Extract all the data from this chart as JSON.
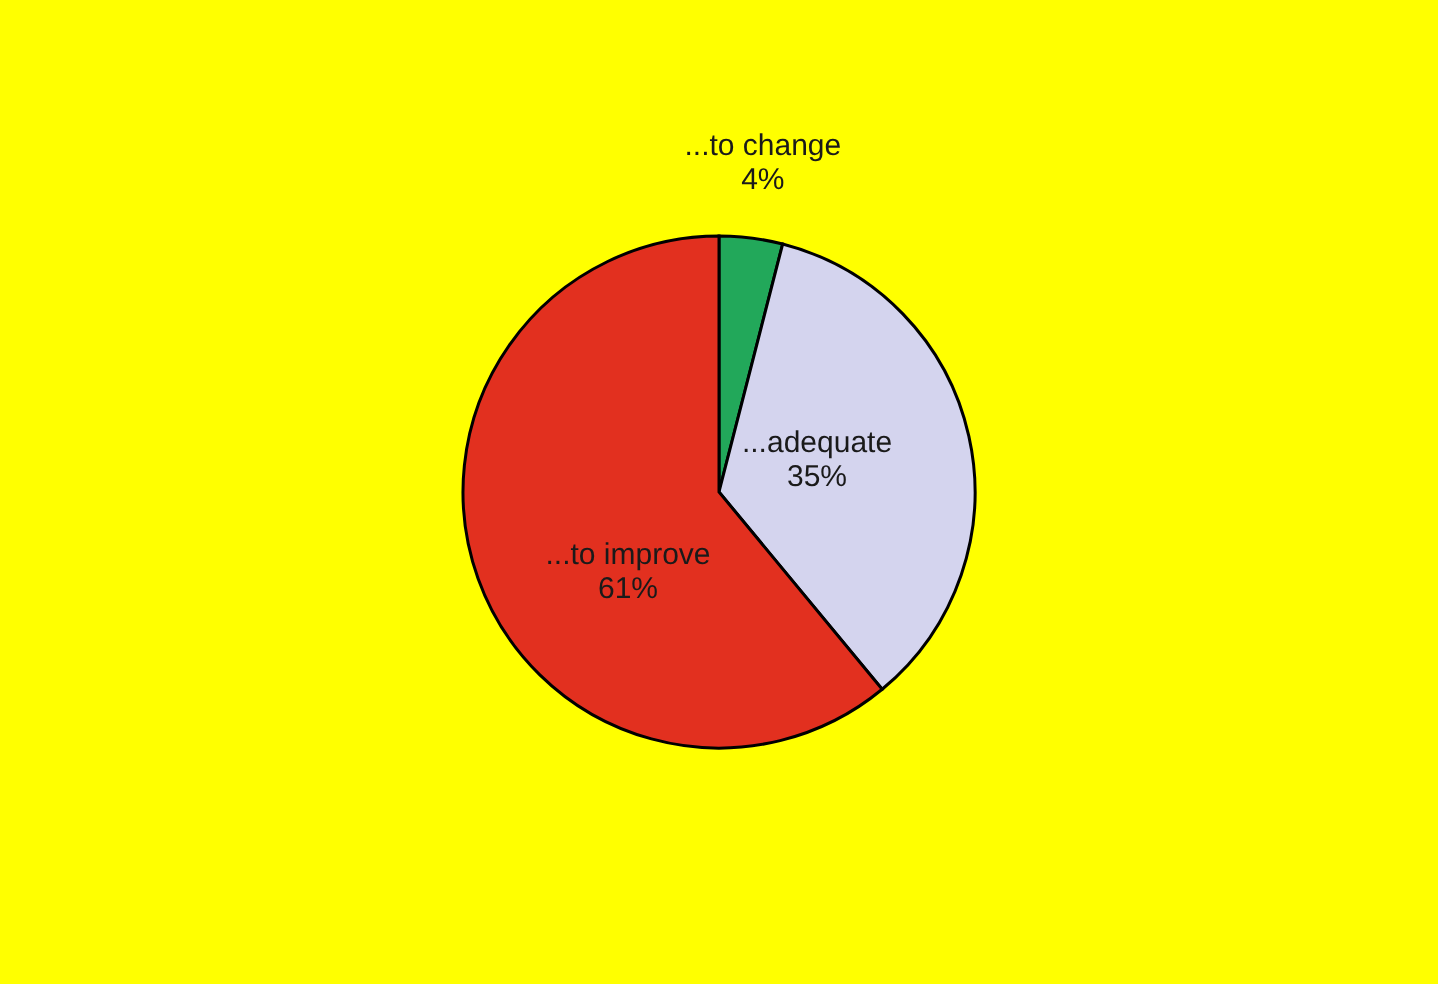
{
  "chart_data": {
    "type": "pie",
    "categories": [
      "...to change",
      "...adequate",
      "...to improve"
    ],
    "values": [
      4,
      35,
      61
    ],
    "value_labels": [
      "4%",
      "35%",
      "61%"
    ],
    "colors": [
      "#22a85a",
      "#d4d4ee",
      "#e2301f"
    ],
    "legend": false
  }
}
